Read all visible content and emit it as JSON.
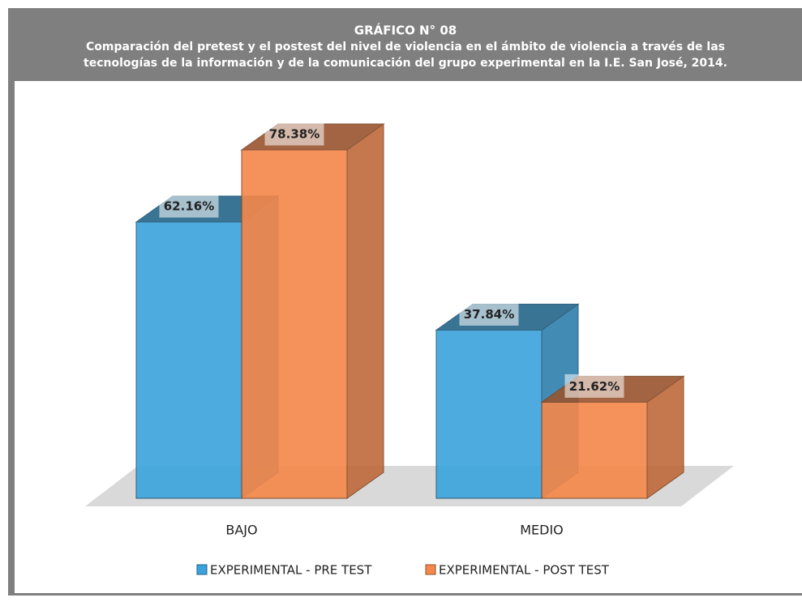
{
  "chart_data": {
    "type": "bar",
    "title": "GRÁFICO N° 08",
    "subtitle": [
      "Comparación del pretest y el postest del nivel de violencia en el ámbito de violencia a través de las",
      "tecnologías de la información y de la comunicación del grupo experimental en la I.E. San José, 2014."
    ],
    "categories": [
      "BAJO",
      "MEDIO"
    ],
    "series": [
      {
        "name": "EXPERIMENTAL - PRE TEST",
        "color": "#3aa3dd",
        "values": [
          62.16,
          37.84
        ],
        "value_labels": [
          "62.16%",
          "37.84%"
        ]
      },
      {
        "name": "EXPERIMENTAL - POST TEST",
        "color": "#f5874a",
        "values": [
          78.38,
          21.62
        ],
        "value_labels": [
          "78.38%",
          "21.62%"
        ]
      }
    ],
    "legend": "bottom"
  }
}
